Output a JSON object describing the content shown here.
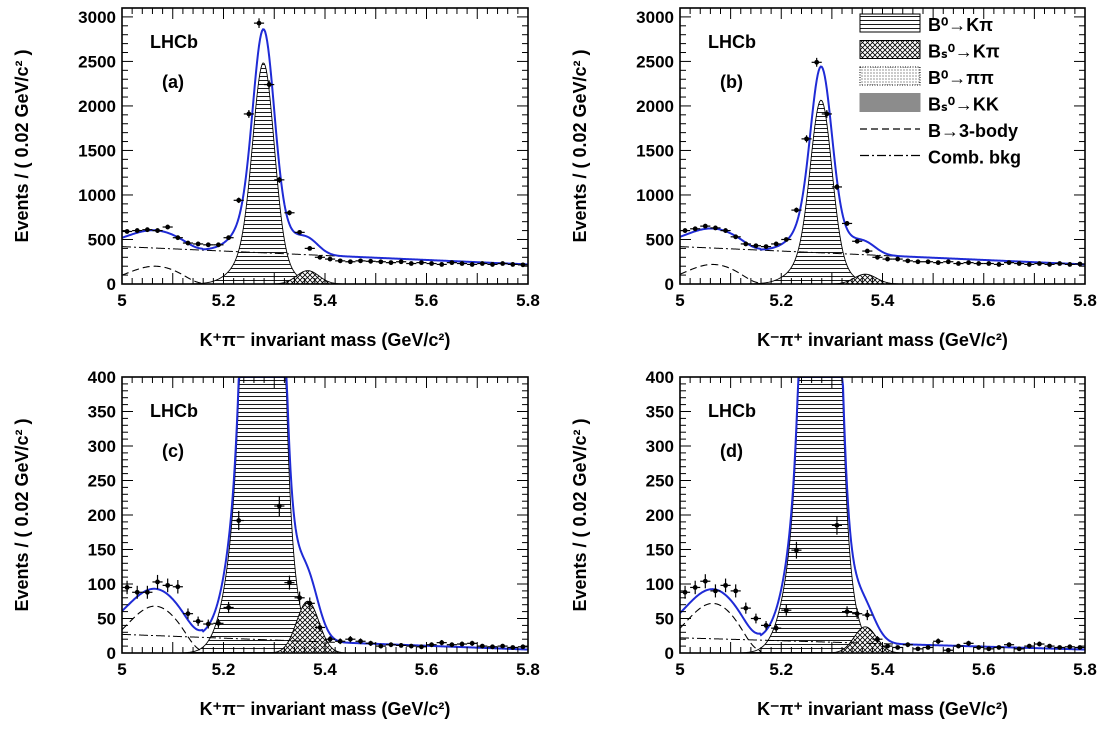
{
  "colors": {
    "fit": "#1f2bd6",
    "data": "#000000",
    "frame": "#000000"
  },
  "legend_entries": [
    {
      "id": "bkpi",
      "label": "B⁰→Kπ",
      "style": "hatch-horizontal"
    },
    {
      "id": "bskpi",
      "label": "Bₛ⁰→Kπ",
      "style": "crosshatch"
    },
    {
      "id": "bpipi",
      "label": "B⁰→ππ",
      "style": "dotted"
    },
    {
      "id": "bskk",
      "label": "Bₛ⁰→KK",
      "style": "solid-gray"
    },
    {
      "id": "b3body",
      "label": "B→3-body",
      "style": "dashed"
    },
    {
      "id": "comb",
      "label": "Comb. bkg",
      "style": "dash-dot"
    }
  ],
  "chart_data": [
    {
      "type": "line",
      "panel_label": "(a)",
      "experiment": "LHCb",
      "xlabel": "K⁺π⁻ invariant mass (GeV/c²)",
      "ylabel": "Events / ( 0.02 GeV/c² )",
      "xlim": [
        5,
        5.8
      ],
      "ylim": [
        0,
        3100
      ],
      "xticks": [
        "5",
        "5.2",
        "5.4",
        "5.6",
        "5.8"
      ],
      "yticks": [
        "0",
        "500",
        "1000",
        "1500",
        "2000",
        "2500",
        "3000"
      ],
      "components": {
        "bkpi_amp": 2490,
        "bskpi_amp": 150,
        "pipi_amp": 30,
        "kk_amp": 25,
        "threebody_amp": 200,
        "comb_start": 420,
        "comb_end": 220
      },
      "data_points": [
        {
          "x": 5.01,
          "y": 590
        },
        {
          "x": 5.03,
          "y": 600
        },
        {
          "x": 5.05,
          "y": 610
        },
        {
          "x": 5.07,
          "y": 600
        },
        {
          "x": 5.09,
          "y": 640
        },
        {
          "x": 5.11,
          "y": 520
        },
        {
          "x": 5.13,
          "y": 460
        },
        {
          "x": 5.15,
          "y": 450
        },
        {
          "x": 5.17,
          "y": 440
        },
        {
          "x": 5.19,
          "y": 440
        },
        {
          "x": 5.21,
          "y": 520
        },
        {
          "x": 5.23,
          "y": 940
        },
        {
          "x": 5.25,
          "y": 1910
        },
        {
          "x": 5.27,
          "y": 2930
        },
        {
          "x": 5.29,
          "y": 2240
        },
        {
          "x": 5.31,
          "y": 1170
        },
        {
          "x": 5.33,
          "y": 800
        },
        {
          "x": 5.35,
          "y": 580
        },
        {
          "x": 5.37,
          "y": 400
        },
        {
          "x": 5.39,
          "y": 300
        },
        {
          "x": 5.41,
          "y": 280
        },
        {
          "x": 5.43,
          "y": 260
        },
        {
          "x": 5.45,
          "y": 250
        },
        {
          "x": 5.47,
          "y": 260
        },
        {
          "x": 5.49,
          "y": 255
        },
        {
          "x": 5.51,
          "y": 250
        },
        {
          "x": 5.53,
          "y": 240
        },
        {
          "x": 5.55,
          "y": 250
        },
        {
          "x": 5.57,
          "y": 230
        },
        {
          "x": 5.59,
          "y": 240
        },
        {
          "x": 5.61,
          "y": 230
        },
        {
          "x": 5.63,
          "y": 220
        },
        {
          "x": 5.65,
          "y": 240
        },
        {
          "x": 5.67,
          "y": 230
        },
        {
          "x": 5.69,
          "y": 220
        },
        {
          "x": 5.71,
          "y": 230
        },
        {
          "x": 5.73,
          "y": 220
        },
        {
          "x": 5.75,
          "y": 230
        },
        {
          "x": 5.77,
          "y": 220
        },
        {
          "x": 5.79,
          "y": 215
        }
      ]
    },
    {
      "type": "line",
      "panel_label": "(b)",
      "experiment": "LHCb",
      "xlabel": "K⁻π⁺ invariant mass (GeV/c²)",
      "ylabel": "Events / ( 0.02 GeV/c² )",
      "xlim": [
        5,
        5.8
      ],
      "ylim": [
        0,
        3100
      ],
      "xticks": [
        "5",
        "5.2",
        "5.4",
        "5.6",
        "5.8"
      ],
      "yticks": [
        "0",
        "500",
        "1000",
        "1500",
        "2000",
        "2500",
        "3000"
      ],
      "components": {
        "bkpi_amp": 2070,
        "bskpi_amp": 110,
        "pipi_amp": 30,
        "kk_amp": 25,
        "threebody_amp": 220,
        "comb_start": 420,
        "comb_end": 220
      },
      "data_points": [
        {
          "x": 5.01,
          "y": 600
        },
        {
          "x": 5.03,
          "y": 620
        },
        {
          "x": 5.05,
          "y": 650
        },
        {
          "x": 5.07,
          "y": 630
        },
        {
          "x": 5.09,
          "y": 600
        },
        {
          "x": 5.11,
          "y": 530
        },
        {
          "x": 5.13,
          "y": 450
        },
        {
          "x": 5.15,
          "y": 430
        },
        {
          "x": 5.17,
          "y": 420
        },
        {
          "x": 5.19,
          "y": 450
        },
        {
          "x": 5.21,
          "y": 500
        },
        {
          "x": 5.23,
          "y": 830
        },
        {
          "x": 5.25,
          "y": 1630
        },
        {
          "x": 5.27,
          "y": 2490
        },
        {
          "x": 5.29,
          "y": 1910
        },
        {
          "x": 5.31,
          "y": 1090
        },
        {
          "x": 5.33,
          "y": 680
        },
        {
          "x": 5.35,
          "y": 480
        },
        {
          "x": 5.37,
          "y": 370
        },
        {
          "x": 5.39,
          "y": 300
        },
        {
          "x": 5.41,
          "y": 280
        },
        {
          "x": 5.43,
          "y": 280
        },
        {
          "x": 5.45,
          "y": 260
        },
        {
          "x": 5.47,
          "y": 250
        },
        {
          "x": 5.49,
          "y": 250
        },
        {
          "x": 5.51,
          "y": 240
        },
        {
          "x": 5.53,
          "y": 250
        },
        {
          "x": 5.55,
          "y": 230
        },
        {
          "x": 5.57,
          "y": 240
        },
        {
          "x": 5.59,
          "y": 230
        },
        {
          "x": 5.61,
          "y": 230
        },
        {
          "x": 5.63,
          "y": 220
        },
        {
          "x": 5.65,
          "y": 240
        },
        {
          "x": 5.67,
          "y": 230
        },
        {
          "x": 5.69,
          "y": 220
        },
        {
          "x": 5.71,
          "y": 230
        },
        {
          "x": 5.73,
          "y": 220
        },
        {
          "x": 5.75,
          "y": 230
        },
        {
          "x": 5.77,
          "y": 220
        },
        {
          "x": 5.79,
          "y": 225
        }
      ]
    },
    {
      "type": "line",
      "panel_label": "(c)",
      "experiment": "LHCb",
      "xlabel": "K⁺π⁻ invariant mass (GeV/c²)",
      "ylabel": "Events / ( 0.02 GeV/c² )",
      "xlim": [
        5,
        5.8
      ],
      "ylim": [
        0,
        400
      ],
      "xticks": [
        "5",
        "5.2",
        "5.4",
        "5.6",
        "5.8"
      ],
      "yticks": [
        "0",
        "50",
        "100",
        "150",
        "200",
        "250",
        "300",
        "350",
        "400"
      ],
      "components": {
        "bkpi_amp": 2490,
        "bskpi_amp": 75,
        "pipi_amp": 6,
        "kk_amp": 4,
        "threebody_amp": 68,
        "comb_start": 27,
        "comb_end": 5
      },
      "data_points": [
        {
          "x": 5.01,
          "y": 95
        },
        {
          "x": 5.03,
          "y": 88
        },
        {
          "x": 5.05,
          "y": 88
        },
        {
          "x": 5.07,
          "y": 103
        },
        {
          "x": 5.09,
          "y": 98
        },
        {
          "x": 5.11,
          "y": 96
        },
        {
          "x": 5.13,
          "y": 57
        },
        {
          "x": 5.15,
          "y": 46
        },
        {
          "x": 5.17,
          "y": 42
        },
        {
          "x": 5.19,
          "y": 43
        },
        {
          "x": 5.21,
          "y": 66
        },
        {
          "x": 5.23,
          "y": 192
        },
        {
          "x": 5.31,
          "y": 213
        },
        {
          "x": 5.33,
          "y": 102
        },
        {
          "x": 5.35,
          "y": 80
        },
        {
          "x": 5.37,
          "y": 72
        },
        {
          "x": 5.39,
          "y": 37
        },
        {
          "x": 5.41,
          "y": 20
        },
        {
          "x": 5.43,
          "y": 17
        },
        {
          "x": 5.45,
          "y": 20
        },
        {
          "x": 5.47,
          "y": 17
        },
        {
          "x": 5.49,
          "y": 14
        },
        {
          "x": 5.51,
          "y": 10
        },
        {
          "x": 5.53,
          "y": 12
        },
        {
          "x": 5.55,
          "y": 11
        },
        {
          "x": 5.57,
          "y": 10
        },
        {
          "x": 5.59,
          "y": 9
        },
        {
          "x": 5.61,
          "y": 12
        },
        {
          "x": 5.63,
          "y": 15
        },
        {
          "x": 5.65,
          "y": 12
        },
        {
          "x": 5.67,
          "y": 13
        },
        {
          "x": 5.69,
          "y": 14
        },
        {
          "x": 5.71,
          "y": 10
        },
        {
          "x": 5.73,
          "y": 9
        },
        {
          "x": 5.75,
          "y": 10
        },
        {
          "x": 5.77,
          "y": 8
        },
        {
          "x": 5.79,
          "y": 9
        }
      ]
    },
    {
      "type": "line",
      "panel_label": "(d)",
      "experiment": "LHCb",
      "xlabel": "K⁻π⁺ invariant mass (GeV/c²)",
      "ylabel": "Events / ( 0.02 GeV/c² )",
      "xlim": [
        5,
        5.8
      ],
      "ylim": [
        0,
        400
      ],
      "xticks": [
        "5",
        "5.2",
        "5.4",
        "5.6",
        "5.8"
      ],
      "yticks": [
        "0",
        "50",
        "100",
        "150",
        "200",
        "250",
        "300",
        "350",
        "400"
      ],
      "components": {
        "bkpi_amp": 2070,
        "bskpi_amp": 38,
        "pipi_amp": 6,
        "kk_amp": 4,
        "threebody_amp": 72,
        "comb_start": 22,
        "comb_end": 5
      },
      "data_points": [
        {
          "x": 5.01,
          "y": 88
        },
        {
          "x": 5.03,
          "y": 95
        },
        {
          "x": 5.05,
          "y": 104
        },
        {
          "x": 5.07,
          "y": 90
        },
        {
          "x": 5.09,
          "y": 98
        },
        {
          "x": 5.11,
          "y": 90
        },
        {
          "x": 5.13,
          "y": 65
        },
        {
          "x": 5.15,
          "y": 50
        },
        {
          "x": 5.17,
          "y": 40
        },
        {
          "x": 5.19,
          "y": 36
        },
        {
          "x": 5.21,
          "y": 62
        },
        {
          "x": 5.23,
          "y": 149
        },
        {
          "x": 5.31,
          "y": 185
        },
        {
          "x": 5.33,
          "y": 60
        },
        {
          "x": 5.35,
          "y": 57
        },
        {
          "x": 5.37,
          "y": 55
        },
        {
          "x": 5.39,
          "y": 20
        },
        {
          "x": 5.41,
          "y": 10
        },
        {
          "x": 5.43,
          "y": 8
        },
        {
          "x": 5.45,
          "y": 12
        },
        {
          "x": 5.47,
          "y": 6
        },
        {
          "x": 5.49,
          "y": 8
        },
        {
          "x": 5.51,
          "y": 17
        },
        {
          "x": 5.53,
          "y": 4
        },
        {
          "x": 5.55,
          "y": 10
        },
        {
          "x": 5.57,
          "y": 14
        },
        {
          "x": 5.59,
          "y": 8
        },
        {
          "x": 5.61,
          "y": 6
        },
        {
          "x": 5.63,
          "y": 8
        },
        {
          "x": 5.65,
          "y": 12
        },
        {
          "x": 5.67,
          "y": 6
        },
        {
          "x": 5.69,
          "y": 10
        },
        {
          "x": 5.71,
          "y": 13
        },
        {
          "x": 5.73,
          "y": 10
        },
        {
          "x": 5.75,
          "y": 8
        },
        {
          "x": 5.77,
          "y": 9
        },
        {
          "x": 5.79,
          "y": 8
        }
      ]
    }
  ]
}
